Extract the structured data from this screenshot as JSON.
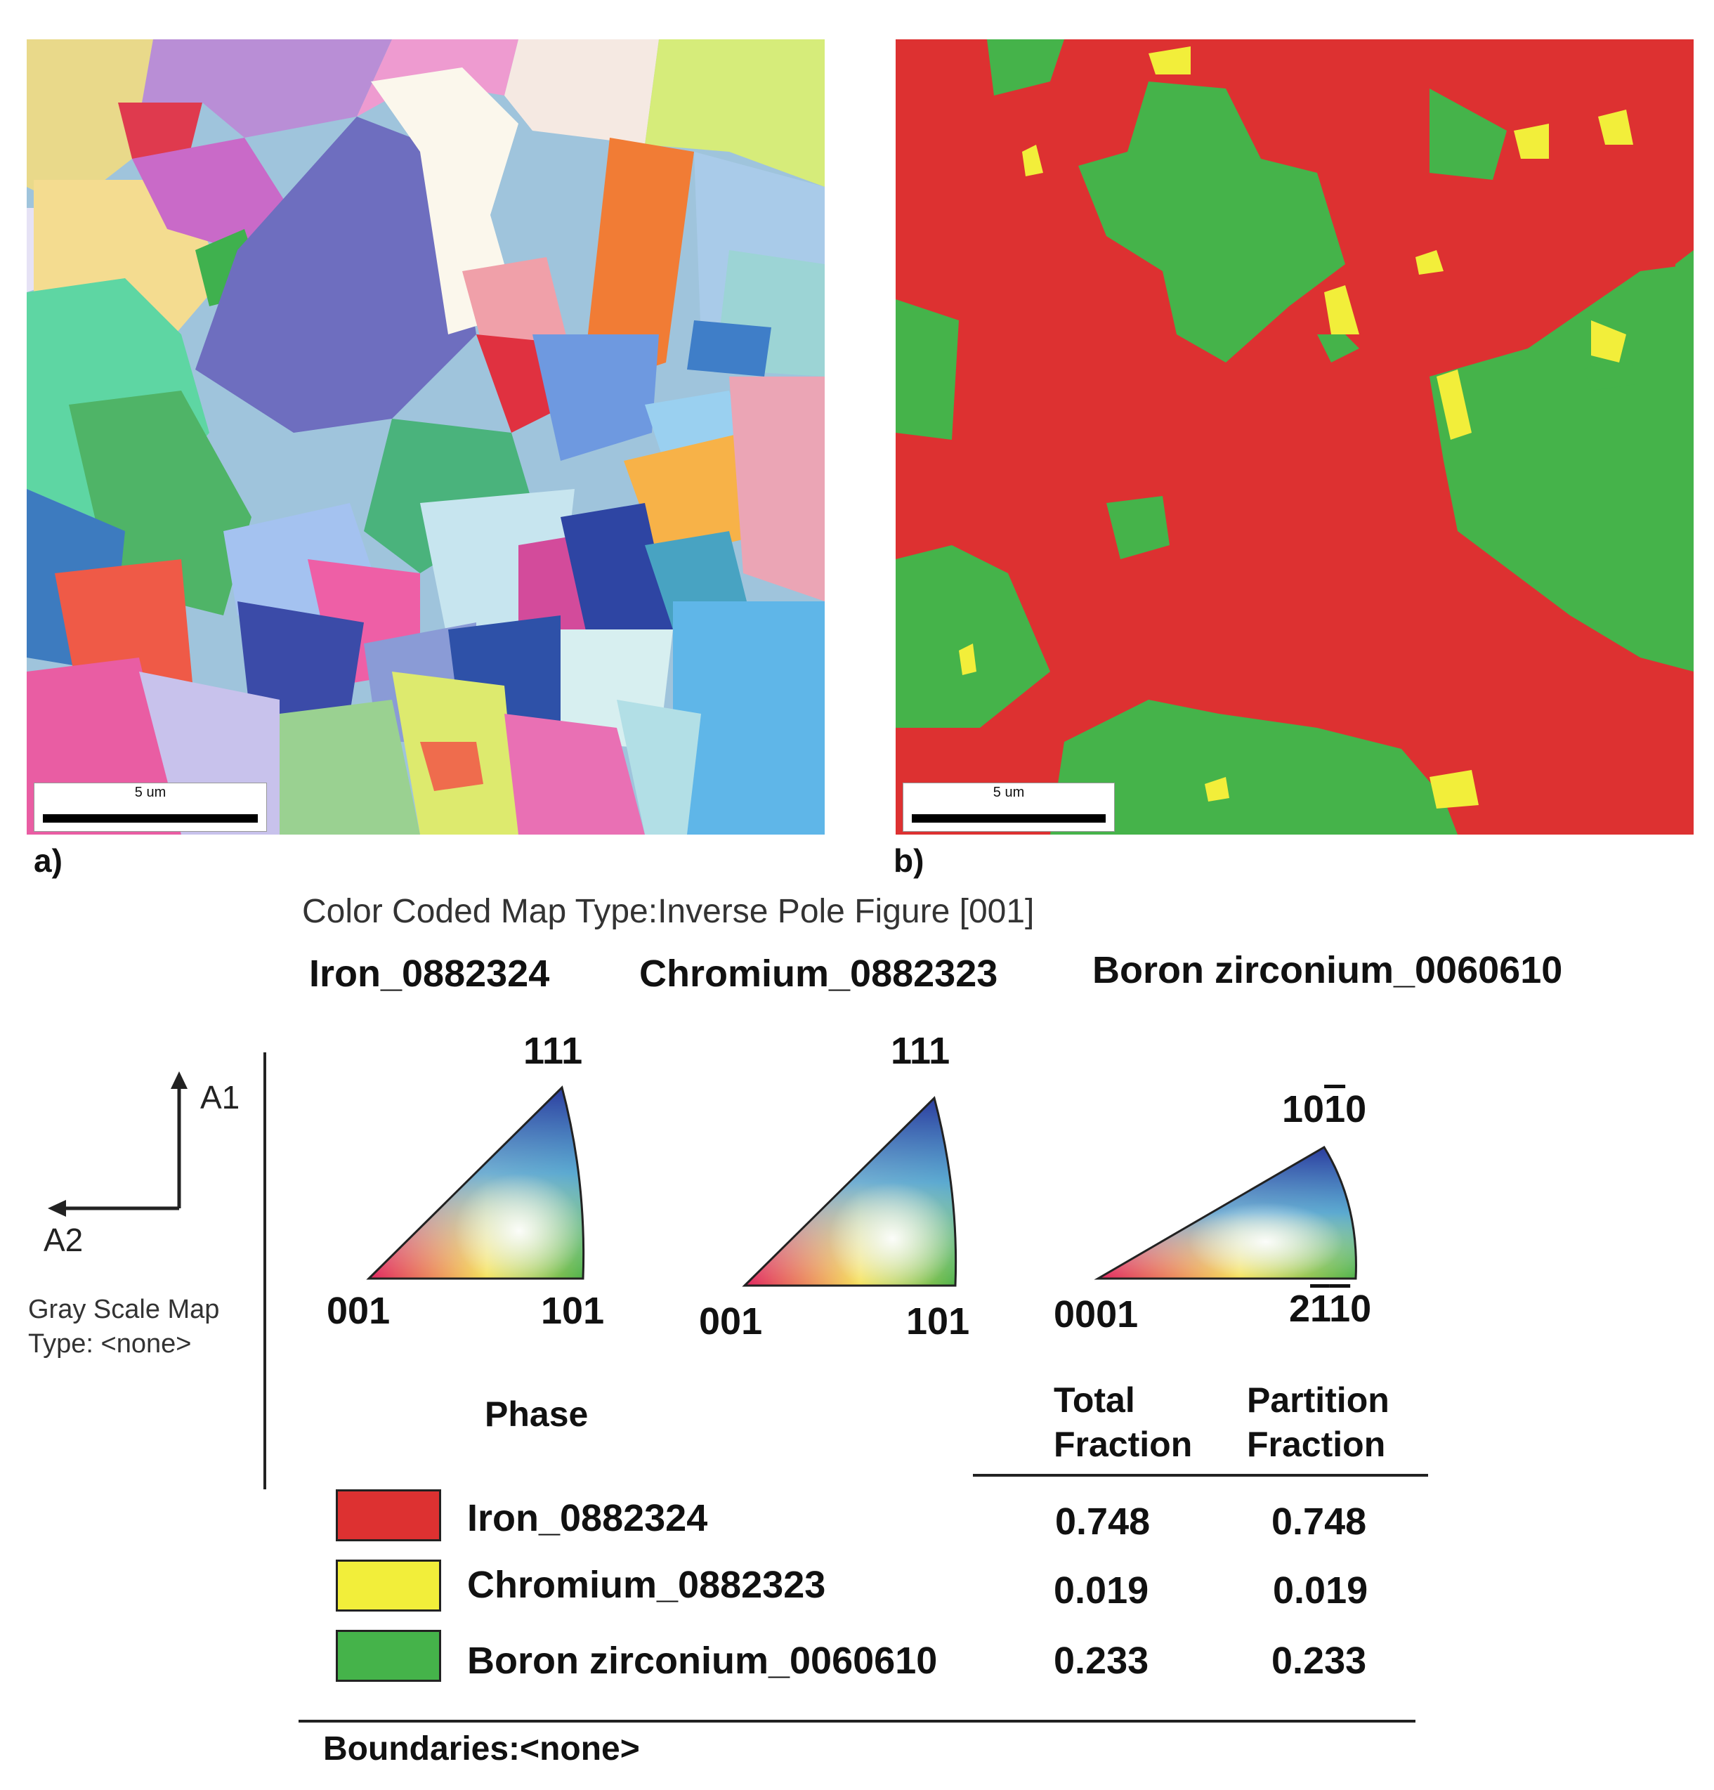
{
  "panels": {
    "a": {
      "label": "a)",
      "scale_label": "5 um"
    },
    "b": {
      "label": "b)",
      "scale_label": "5 um"
    }
  },
  "legend": {
    "title": "Color Coded Map Type:Inverse Pole Figure [001]",
    "phase_names": [
      "Iron_0882324",
      "Chromium_0882323",
      "Boron zirconium_0060610"
    ],
    "ipf": [
      {
        "top": "111",
        "left": "001",
        "right": "101"
      },
      {
        "top": "111",
        "left": "001",
        "right": "101"
      },
      {
        "top_parts": [
          "10",
          "1",
          "0"
        ],
        "left": "0001",
        "right_parts": [
          "2",
          "1",
          "1",
          "0"
        ]
      }
    ],
    "axes": {
      "a1": "A1",
      "a2": "A2"
    },
    "gray_scale": "Gray Scale Map Type: <none>",
    "table": {
      "phase_header": "Phase",
      "total_header": "Total Fraction",
      "partition_header": "Partition Fraction",
      "rows": [
        {
          "name": "Iron_0882324",
          "color": "#dd3131",
          "total": "0.748",
          "partition": "0.748"
        },
        {
          "name": "Chromium_0882323",
          "color": "#f2ee3a",
          "total": "0.019",
          "partition": "0.019"
        },
        {
          "name": "Boron zirconium_0060610",
          "color": "#45b34a",
          "total": "0.233",
          "partition": "0.233"
        }
      ]
    },
    "boundaries": "Boundaries:<none>"
  }
}
